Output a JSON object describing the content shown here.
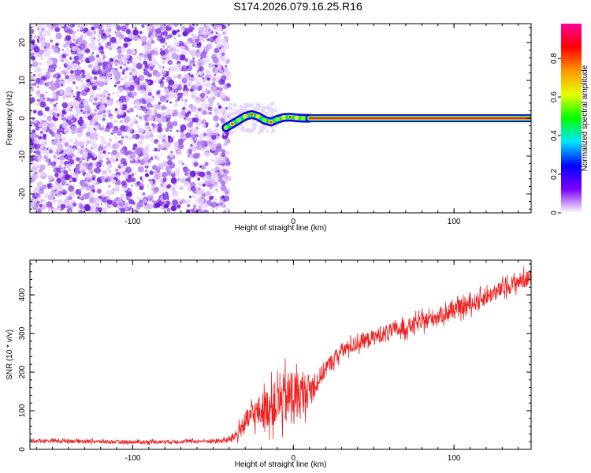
{
  "title": "S174.2026.079.16.25.R16",
  "chart_data": [
    {
      "type": "heatmap",
      "name": "spectrogram",
      "xlabel": "Height of straight line (km)",
      "ylabel": "Frequency (Hz)",
      "xlim": [
        -164,
        148
      ],
      "ylim": [
        -25,
        25
      ],
      "xticks": [
        -100,
        0,
        100
      ],
      "yticks": [
        -20,
        -10,
        0,
        10,
        20
      ],
      "noise_region_x": [
        -164,
        -40
      ],
      "signal_start_x": -42,
      "tone_x": [
        10,
        148
      ],
      "tone_frequency": 0,
      "wander_track": {
        "x": [
          -42,
          -38,
          -34,
          -30,
          -26,
          -22,
          -18,
          -14,
          -10,
          -6,
          -2,
          2,
          6,
          10
        ],
        "frequency": [
          -2.5,
          -1.5,
          -0.5,
          0.5,
          1,
          0.5,
          -0.5,
          -1,
          -0.3,
          0.2,
          0.3,
          0.1,
          0,
          0
        ]
      },
      "colorbar": {
        "label": "Normalized spectral amplitude",
        "range": [
          0,
          0.98
        ],
        "ticks": [
          0,
          0.2,
          0.4,
          0.6,
          0.8
        ],
        "colors": [
          "#ffffff",
          "#7b00ff",
          "#0000ff",
          "#00e5ff",
          "#00ff00",
          "#e5ff00",
          "#ff9900",
          "#ff0000",
          "#ff0099"
        ]
      }
    },
    {
      "type": "line",
      "name": "snr",
      "xlabel": "Height of straight line (km)",
      "ylabel": "SNR (10 * v/v)",
      "xlim": [
        -164,
        148
      ],
      "ylim": [
        0,
        490
      ],
      "xticks": [
        -100,
        0,
        100
      ],
      "yticks": [
        0,
        100,
        200,
        300,
        400
      ],
      "color": "#ee2222",
      "series": [
        {
          "name": "SNR",
          "x": [
            -164,
            -140,
            -120,
            -100,
            -80,
            -60,
            -45,
            -40,
            -35,
            -30,
            -25,
            -20,
            -15,
            -10,
            -5,
            0,
            5,
            10,
            15,
            20,
            30,
            40,
            50,
            60,
            70,
            80,
            90,
            100,
            110,
            120,
            130,
            140,
            148
          ],
          "y": [
            22,
            22,
            20,
            19,
            20,
            21,
            22,
            25,
            40,
            70,
            90,
            100,
            110,
            120,
            130,
            140,
            140,
            155,
            175,
            210,
            255,
            275,
            290,
            305,
            315,
            330,
            345,
            360,
            375,
            395,
            415,
            435,
            445
          ],
          "noise_amplitude": [
            5,
            5,
            5,
            5,
            5,
            5,
            6,
            8,
            18,
            28,
            35,
            45,
            55,
            60,
            70,
            70,
            60,
            40,
            28,
            22,
            20,
            20,
            20,
            20,
            22,
            22,
            22,
            22,
            22,
            22,
            22,
            22,
            22
          ]
        }
      ]
    }
  ]
}
